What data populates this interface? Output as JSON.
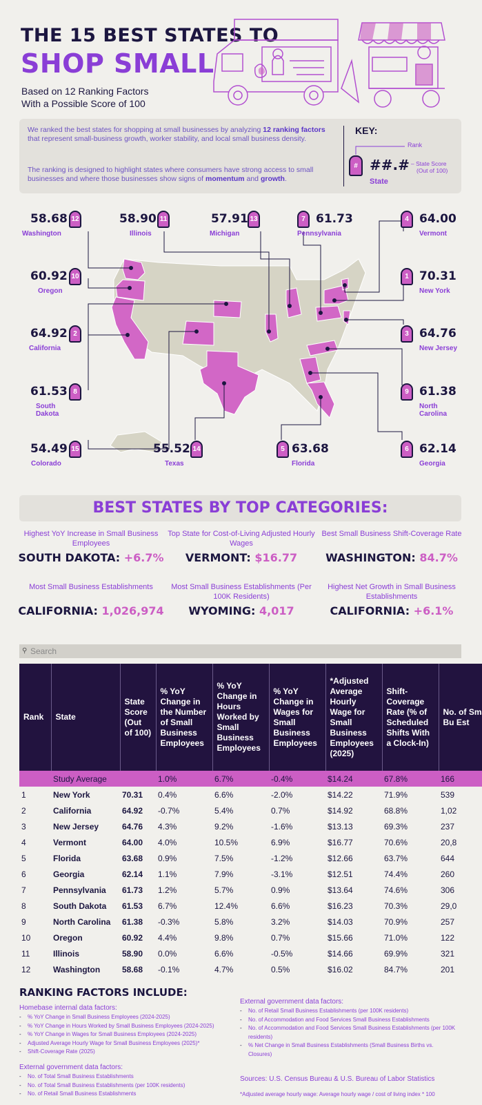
{
  "header": {
    "title_line1": "THE 15 BEST STATES TO",
    "title_line2": "SHOP SMALL",
    "subtitle_line1": "Based on 12 Ranking Factors",
    "subtitle_line2": "With a Possible Score of 100"
  },
  "intro": {
    "p1_a": "We ranked the best states for shopping at small businesses by analyzing ",
    "p1_b": "12 ranking factors",
    "p1_c": " that represent small-business growth, worker stability, and local small business density.",
    "p2_a": "The ranking is designed to highlight states where consumers have strong access to small businesses and where those businesses show signs of ",
    "p2_b": "momentum",
    "p2_c": " and ",
    "p2_d": "growth",
    "p2_e": "."
  },
  "key": {
    "title": "KEY:",
    "rank": "Rank",
    "pin": "#",
    "score": "##.#",
    "score_label": "State Score",
    "score_label2": "(Out of 100)",
    "state": "State"
  },
  "map_states": [
    {
      "rank": "12",
      "score": "58.68",
      "name": "Washington"
    },
    {
      "rank": "11",
      "score": "58.90",
      "name": "Illinois"
    },
    {
      "rank": "13",
      "score": "57.91",
      "name": "Michigan"
    },
    {
      "rank": "7",
      "score": "61.73",
      "name": "Pennsylvania"
    },
    {
      "rank": "4",
      "score": "64.00",
      "name": "Vermont"
    },
    {
      "rank": "10",
      "score": "60.92",
      "name": "Oregon"
    },
    {
      "rank": "1",
      "score": "70.31",
      "name": "New York"
    },
    {
      "rank": "2",
      "score": "64.92",
      "name": "California"
    },
    {
      "rank": "3",
      "score": "64.76",
      "name": "New Jersey"
    },
    {
      "rank": "8",
      "score": "61.53",
      "name": "South",
      "name2": "Dakota"
    },
    {
      "rank": "9",
      "score": "61.38",
      "name": "North",
      "name2": "Carolina"
    },
    {
      "rank": "15",
      "score": "54.49",
      "name": "Colorado"
    },
    {
      "rank": "14",
      "score": "55.52",
      "name": "Texas"
    },
    {
      "rank": "5",
      "score": "63.68",
      "name": "Florida"
    },
    {
      "rank": "6",
      "score": "62.14",
      "name": "Georgia"
    }
  ],
  "categories": {
    "title": "BEST STATES BY TOP CATEGORIES:",
    "items": [
      {
        "label": "Highest YoY Increase in Small Business Employees",
        "state": "SOUTH DAKOTA:",
        "value": " +6.7%"
      },
      {
        "label": "Top State for Cost-of-Living Adjusted Hourly Wages",
        "state": "VERMONT:",
        "value": " $16.77"
      },
      {
        "label": "Best Small Business Shift-Coverage Rate",
        "state": "WASHINGTON:",
        "value": " 84.7%"
      },
      {
        "label": "Most Small Business Establishments",
        "state": "CALIFORNIA:",
        "value": " 1,026,974"
      },
      {
        "label": "Most Small Business Establishments (Per 100K Residents)",
        "state": "WYOMING:",
        "value": " 4,017"
      },
      {
        "label": "Highest Net Growth in Small Business Establishments",
        "state": "CALIFORNIA:",
        "value": " +6.1%"
      }
    ]
  },
  "search": {
    "placeholder": "Search"
  },
  "table": {
    "headers": [
      "Rank",
      "State",
      "State Score (Out of 100)",
      "% YoY Change in the Number of Small Business Employees",
      "% YoY Change in Hours Worked by Small Business Employees",
      "% YoY Change in Wages for Small Business Employees",
      "*Adjusted Average Hourly Wage for Small Business Employees (2025)",
      "Shift-Coverage Rate (% of Scheduled Shifts With a Clock-In)",
      "No. of Small Bu Est"
    ],
    "average": [
      "",
      "Study Average",
      "",
      "1.0%",
      "6.7%",
      "-0.4%",
      "$14.24",
      "67.8%",
      "166"
    ],
    "rows": [
      [
        "1",
        "New York",
        "70.31",
        "0.4%",
        "6.6%",
        "-2.0%",
        "$14.22",
        "71.9%",
        "539"
      ],
      [
        "2",
        "California",
        "64.92",
        "-0.7%",
        "5.4%",
        "0.7%",
        "$14.92",
        "68.8%",
        "1,02"
      ],
      [
        "3",
        "New Jersey",
        "64.76",
        "4.3%",
        "9.2%",
        "-1.6%",
        "$13.13",
        "69.3%",
        "237"
      ],
      [
        "4",
        "Vermont",
        "64.00",
        "4.0%",
        "10.5%",
        "6.9%",
        "$16.77",
        "70.6%",
        "20,8"
      ],
      [
        "5",
        "Florida",
        "63.68",
        "0.9%",
        "7.5%",
        "-1.2%",
        "$12.66",
        "63.7%",
        "644"
      ],
      [
        "6",
        "Georgia",
        "62.14",
        "1.1%",
        "7.9%",
        "-3.1%",
        "$12.51",
        "74.4%",
        "260"
      ],
      [
        "7",
        "Pennsylvania",
        "61.73",
        "1.2%",
        "5.7%",
        "0.9%",
        "$13.64",
        "74.6%",
        "306"
      ],
      [
        "8",
        "South Dakota",
        "61.53",
        "6.7%",
        "12.4%",
        "6.6%",
        "$16.23",
        "70.3%",
        "29,0"
      ],
      [
        "9",
        "North Carolina",
        "61.38",
        "-0.3%",
        "5.8%",
        "3.2%",
        "$14.03",
        "70.9%",
        "257"
      ],
      [
        "10",
        "Oregon",
        "60.92",
        "4.4%",
        "9.8%",
        "0.7%",
        "$15.66",
        "71.0%",
        "122"
      ],
      [
        "11",
        "Illinois",
        "58.90",
        "0.0%",
        "6.6%",
        "-0.5%",
        "$14.66",
        "69.9%",
        "321"
      ],
      [
        "12",
        "Washington",
        "58.68",
        "-0.1%",
        "4.7%",
        "0.5%",
        "$16.02",
        "84.7%",
        "201"
      ]
    ]
  },
  "factors": {
    "title": "RANKING FACTORS INCLUDE:",
    "homebase_title": "Homebase internal data factors:",
    "homebase": [
      "% YoY Change in Small Business Employees (2024-2025)",
      "% YoY Change in Hours Worked by Small Business Employees (2024-2025)",
      "% YoY Change in Wages for Small Business Employees (2024-2025)",
      "Adjusted Average Hourly Wage for Small Business Employees (2025)*",
      "Shift-Coverage Rate (2025)"
    ],
    "ext1_title": "External government data factors:",
    "ext1": [
      "No. of Total Small Business Establishments",
      "No. of Total Small Business Establishments (per 100K residents)",
      "No. of Retail Small Business Establishments"
    ],
    "ext2_title": "External government data factors:",
    "ext2": [
      "No. of Retail Small Business Establishments (per 100K residents)",
      "No. of Accommodation and Food Services Small Business Establishments",
      "No. of Accommodation and Food Services Small Business Establishments (per 100K residents)",
      "% Net Change in Small Business Establishments (Small Business Births vs. Closures)"
    ],
    "sources": "Sources: U.S. Census Bureau & U.S. Bureau of Labor Statistics",
    "footnote": "*Adjusted average hourly wage: Average hourly wage / cost of living index * 100"
  }
}
